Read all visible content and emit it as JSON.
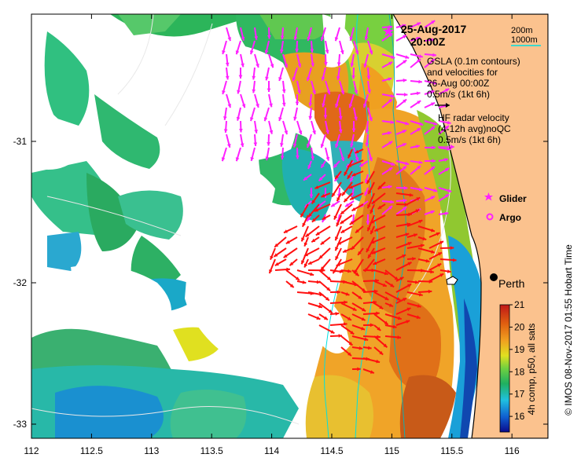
{
  "map": {
    "date": "25-Aug-2017",
    "time": "20:00Z",
    "x_ticks": [
      "112",
      "112.5",
      "113",
      "113.5",
      "114",
      "114.5",
      "115",
      "115.5",
      "116"
    ],
    "y_ticks": [
      "-31",
      "-32",
      "-33"
    ],
    "lon_range": [
      112,
      116.3
    ],
    "lat_range": [
      -33.1,
      -30.1
    ],
    "legend": {
      "contour_200": "200m",
      "contour_1000": "1000m",
      "gsla_line1": "GSLA (0.1m contours)",
      "gsla_line2": "and velocities for",
      "gsla_line3": "26-Aug 00:00Z",
      "gsla_scale": "0.5m/s (1kt 6h)",
      "hf_line1": "HF radar velocity",
      "hf_line2": "(4-12h avg)noQC",
      "hf_scale": "0.5m/s (1kt 6h)",
      "glider": "Glider",
      "argo": "Argo"
    },
    "city": "Perth",
    "colorbar": {
      "label": "4h comp, p50, all sats",
      "ticks": [
        "21",
        "20",
        "19",
        "18",
        "17",
        "16"
      ],
      "range": [
        15.3,
        21
      ]
    },
    "credit": "© IMOS 08-Nov-2017 01:55 Hobart Time",
    "colors": {
      "land": "#fbc28e",
      "gsla_arrow": "#ff20ff",
      "hf_arrow": "#ff1010",
      "cyan_contour": "#00e0e0"
    }
  }
}
